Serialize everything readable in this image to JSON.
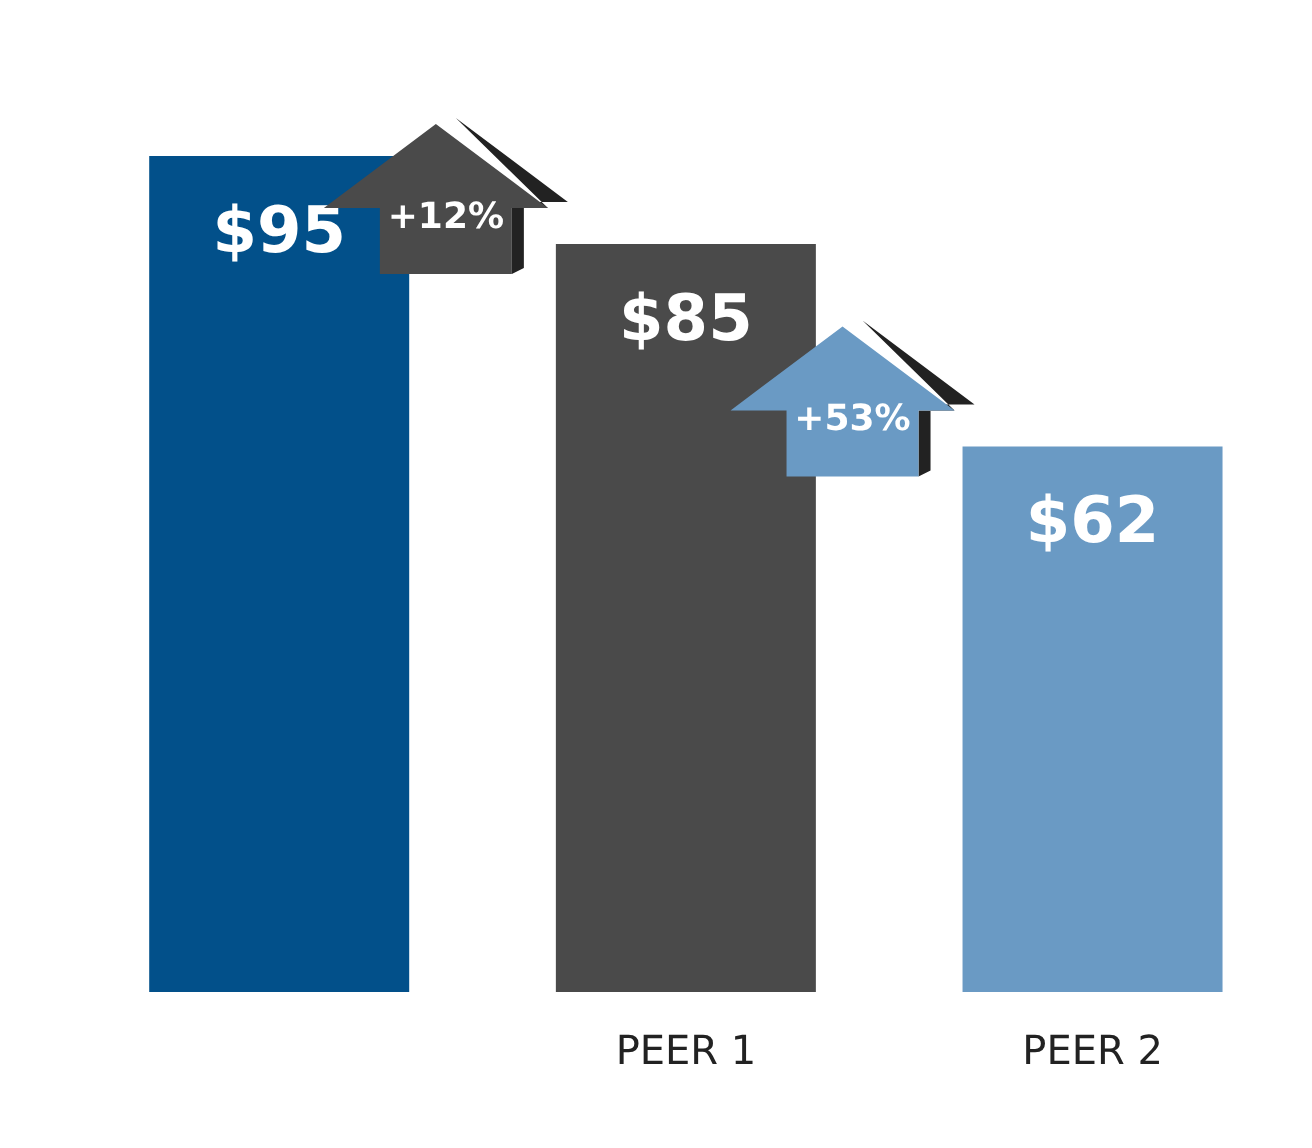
{
  "chart_data": {
    "type": "bar",
    "categories": [
      null,
      "PEER 1",
      "PEER 2"
    ],
    "values": [
      95,
      85,
      62
    ],
    "colors": [
      "#02508a",
      "#4a4a4a",
      "#6a9ac4"
    ],
    "value_labels": [
      "$95",
      "$85",
      "$62"
    ],
    "annotations": [
      "+12%",
      "+53%"
    ],
    "grid": false,
    "legend": false
  }
}
